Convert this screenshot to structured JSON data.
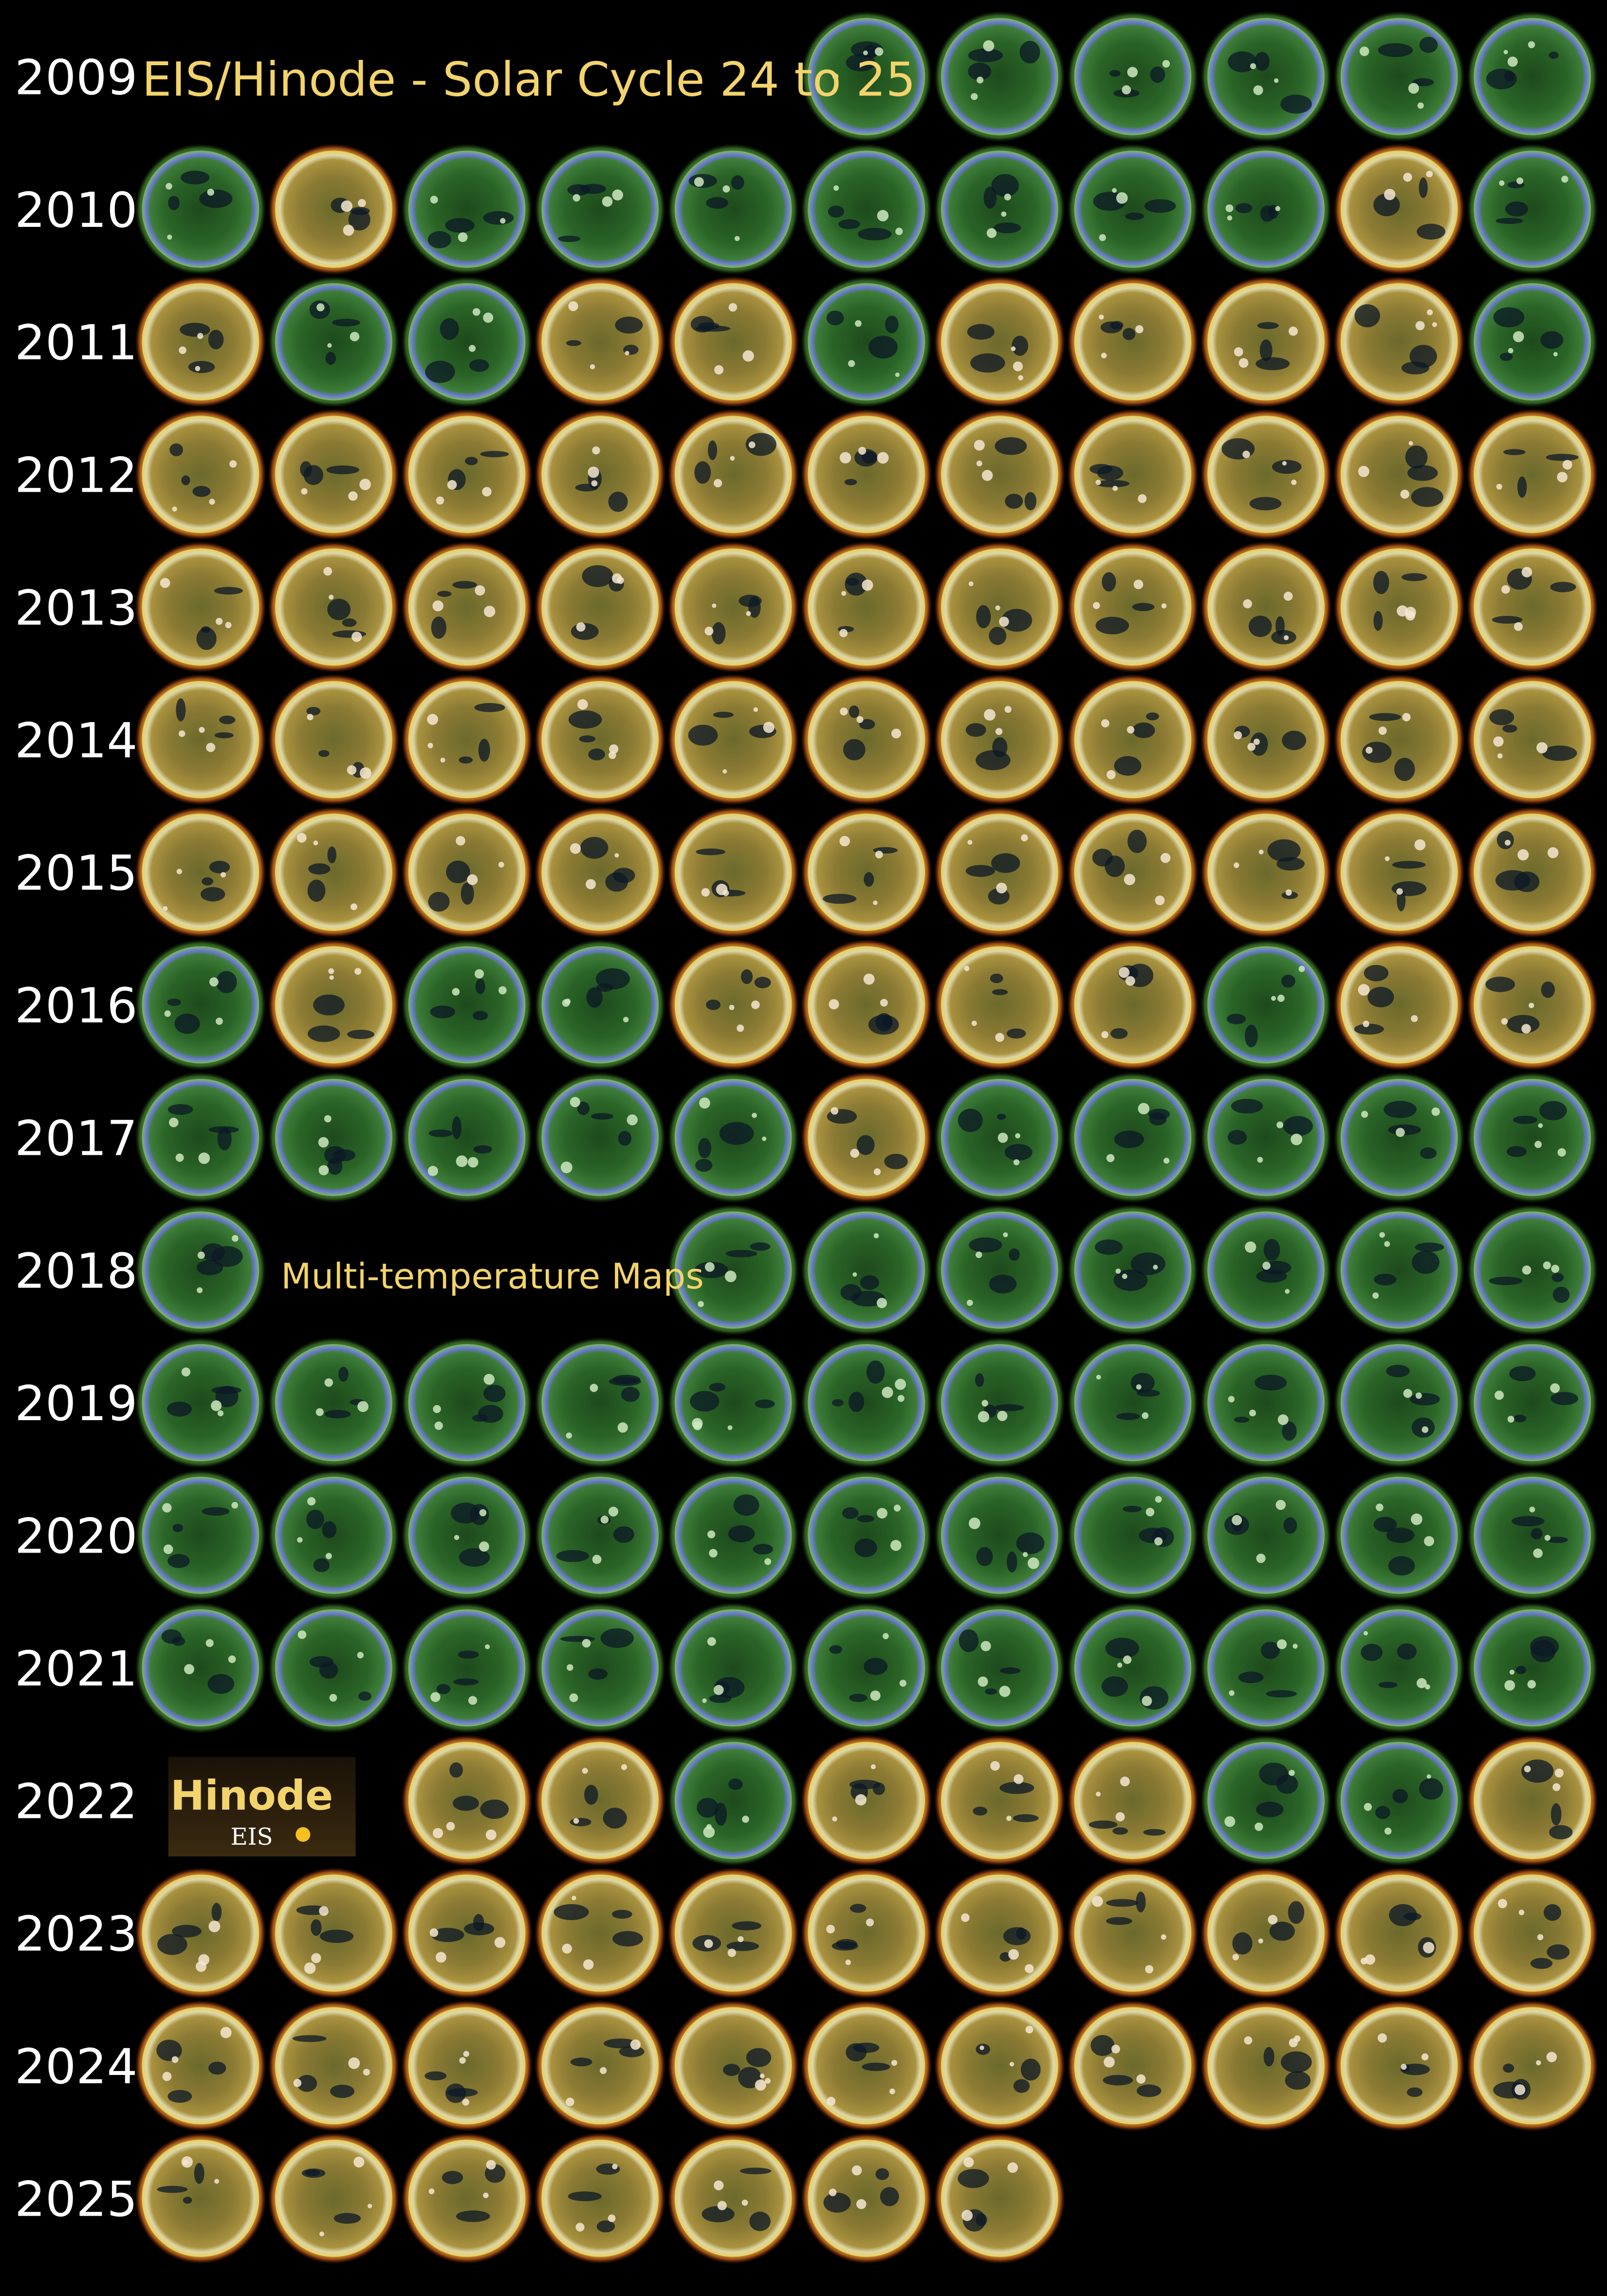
{
  "header": {
    "title": "EIS/Hinode - Solar Cycle 24 to 25"
  },
  "rows": [
    {
      "year": "2009"
    },
    {
      "year": "2010"
    },
    {
      "year": "2011"
    },
    {
      "year": "2012"
    },
    {
      "year": "2013"
    },
    {
      "year": "2014"
    },
    {
      "year": "2015"
    },
    {
      "year": "2016"
    },
    {
      "year": "2017"
    },
    {
      "year": "2018"
    },
    {
      "year": "2019"
    },
    {
      "year": "2020"
    },
    {
      "year": "2021"
    },
    {
      "year": "2022"
    },
    {
      "year": "2023"
    },
    {
      "year": "2024"
    },
    {
      "year": "2025"
    }
  ],
  "annotation": "Multi-temperature Maps",
  "logo": {
    "name": "Hinode",
    "instrument": "EIS"
  }
}
